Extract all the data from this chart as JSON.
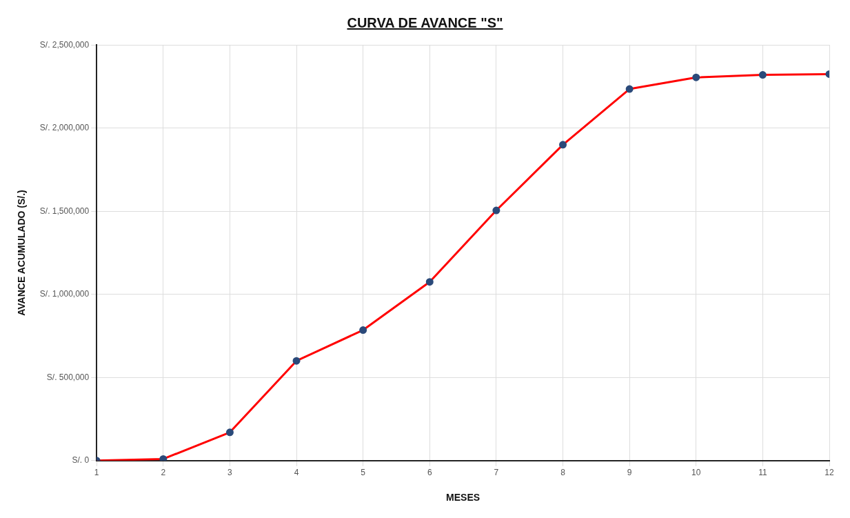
{
  "chart_data": {
    "type": "line",
    "title": "CURVA DE AVANCE \"S\"",
    "xlabel": "MESES",
    "ylabel": "AVANCE ACUMULADO (S/.)",
    "x": [
      1,
      2,
      3,
      4,
      5,
      6,
      7,
      8,
      9,
      10,
      11,
      12
    ],
    "series": [
      {
        "color": "#ff0000",
        "values": [
          0,
          10000,
          170000,
          600000,
          785000,
          1075000,
          1505000,
          1900000,
          2235000,
          2305000,
          2320000,
          2325000
        ]
      }
    ],
    "xlim": [
      1,
      12
    ],
    "xticks": [
      1,
      2,
      3,
      4,
      5,
      6,
      7,
      8,
      9,
      10,
      11,
      12
    ],
    "ylim": [
      0,
      2500000
    ],
    "yticks": [
      {
        "value": 0,
        "label": "S/. 0"
      },
      {
        "value": 500000,
        "label": "S/. 500,000"
      },
      {
        "value": 1000000,
        "label": "S/. 1,000,000"
      },
      {
        "value": 1500000,
        "label": "S/. 1,500,000"
      },
      {
        "value": 2000000,
        "label": "S/. 2,000,000"
      },
      {
        "value": 2500000,
        "label": "S/. 2,500,000"
      }
    ],
    "grid": true,
    "marker": "circle",
    "line_style": "solid"
  }
}
